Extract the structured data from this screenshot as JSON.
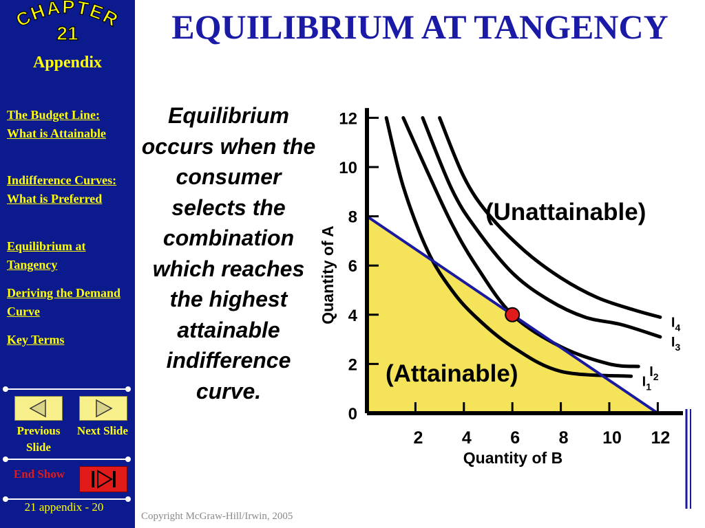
{
  "sidebar": {
    "chapter_word": "CHAPTER",
    "chapter_number": "21",
    "appendix": "Appendix",
    "links": [
      "The Budget Line: What is Attainable",
      "Indifference Curves: What is Preferred",
      "Equilibrium at Tangency",
      "Deriving the Demand Curve",
      "Key Terms"
    ],
    "previous": "Previous Slide",
    "next": "Next Slide",
    "end": "End Show",
    "slide_number": "21 appendix - 20"
  },
  "title": "EQUILIBRIUM AT TANGENCY",
  "body_text": "Equilibrium occurs when the consumer selects the combination which reaches the highest attainable indifference curve.",
  "copyright": "Copyright McGraw-Hill/Irwin, 2005",
  "colors": {
    "sidebar_bg": "#0b1a8c",
    "link_yellow": "#ffff00",
    "title_blue": "#1a1aa6",
    "attainable_fill": "#f5e35a",
    "budget_line": "#1a1aa0",
    "equilibrium_point": "#e01b1b"
  },
  "chart_data": {
    "type": "line",
    "xlabel": "Quantity of B",
    "ylabel": "Quantity of A",
    "xlim": [
      0,
      12
    ],
    "ylim": [
      0,
      12
    ],
    "x_ticks": [
      2,
      4,
      6,
      8,
      10,
      12
    ],
    "y_ticks": [
      0,
      2,
      4,
      6,
      8,
      10,
      12
    ],
    "budget_line": {
      "x": [
        0,
        12
      ],
      "y": [
        8,
        0
      ]
    },
    "region_labels": [
      "(Unattainable)",
      "(Attainable)"
    ],
    "equilibrium_point": {
      "x": 6,
      "y": 4
    },
    "series": [
      {
        "name": "I",
        "sub": "1",
        "x": [
          0.8,
          1.5,
          2.5,
          3.5,
          4.5,
          6,
          8,
          10.9
        ],
        "y": [
          12,
          9.2,
          6.6,
          5.0,
          3.9,
          2.7,
          1.7,
          1.5
        ]
      },
      {
        "name": "I",
        "sub": "2",
        "x": [
          1.5,
          2.5,
          3.5,
          4.5,
          6,
          8,
          10,
          11.2
        ],
        "y": [
          12,
          9.8,
          7.7,
          6.0,
          4.0,
          2.7,
          2.0,
          1.9
        ]
      },
      {
        "name": "I",
        "sub": "3",
        "x": [
          2.3,
          3.5,
          4.5,
          6,
          7.5,
          9,
          10.5,
          12.1
        ],
        "y": [
          12,
          9.1,
          7.5,
          5.7,
          4.6,
          3.9,
          3.6,
          3.1
        ]
      },
      {
        "name": "I",
        "sub": "4",
        "x": [
          3.0,
          4.0,
          5.0,
          6.5,
          8,
          9.5,
          11,
          12.1
        ],
        "y": [
          12,
          9.6,
          8.1,
          6.6,
          5.5,
          4.7,
          4.2,
          3.9
        ]
      }
    ]
  }
}
